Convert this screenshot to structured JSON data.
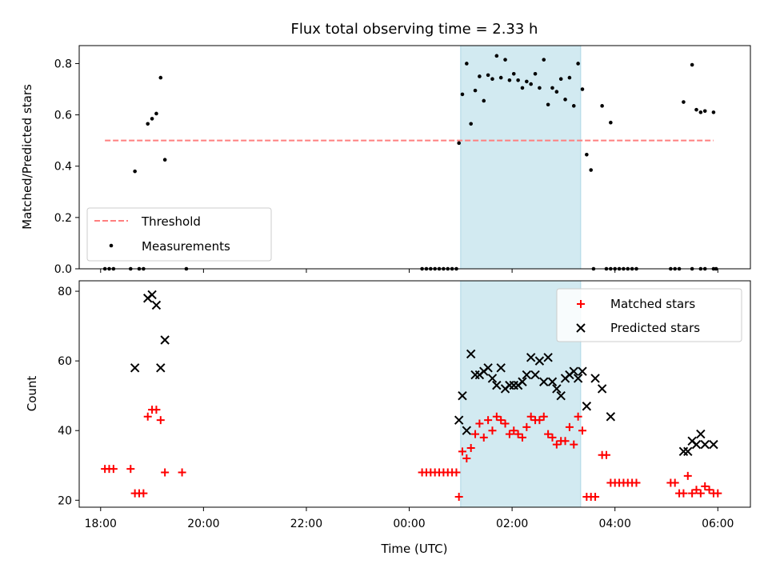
{
  "chart_data": [
    {
      "type": "scatter",
      "panel": "top",
      "title": "Flux total observing time = 2.33 h",
      "ylabel": "Matched/Predicted stars",
      "xlim": [
        "17:35",
        "06:38"
      ],
      "ylim": [
        0,
        0.87
      ],
      "yticks": [
        0.0,
        0.2,
        0.4,
        0.6,
        0.8
      ],
      "ytick_labels": [
        "0.0",
        "0.2",
        "0.4",
        "0.6",
        "0.8"
      ],
      "shaded_interval": [
        "01:00",
        "03:20"
      ],
      "shade_color": "#add8e6",
      "threshold": {
        "name": "Threshold",
        "value": 0.5,
        "x_range": [
          "18:05",
          "05:55"
        ],
        "color": "#ff7f7f",
        "style": "dashed"
      },
      "legend": {
        "placement": "lower-left",
        "entries": [
          "Threshold",
          "Measurements"
        ]
      },
      "series": [
        {
          "name": "Measurements",
          "color": "#000000",
          "marker": "dot",
          "points": [
            [
              "18:05",
              0
            ],
            [
              "18:10",
              0
            ],
            [
              "18:15",
              0
            ],
            [
              "18:35",
              0
            ],
            [
              "18:45",
              0
            ],
            [
              "18:50",
              0
            ],
            [
              "19:40",
              0
            ],
            [
              "18:40",
              0.38
            ],
            [
              "18:55",
              0.565
            ],
            [
              "19:00",
              0.585
            ],
            [
              "19:05",
              0.605
            ],
            [
              "19:10",
              0.745
            ],
            [
              "19:15",
              0.425
            ],
            [
              "00:15",
              0
            ],
            [
              "00:20",
              0
            ],
            [
              "00:25",
              0
            ],
            [
              "00:30",
              0
            ],
            [
              "00:35",
              0
            ],
            [
              "00:40",
              0
            ],
            [
              "00:45",
              0
            ],
            [
              "00:50",
              0
            ],
            [
              "00:55",
              0
            ],
            [
              "00:58",
              0.49
            ],
            [
              "01:02",
              0.68
            ],
            [
              "01:07",
              0.8
            ],
            [
              "01:12",
              0.565
            ],
            [
              "01:17",
              0.695
            ],
            [
              "01:22",
              0.75
            ],
            [
              "01:27",
              0.655
            ],
            [
              "01:32",
              0.755
            ],
            [
              "01:37",
              0.74
            ],
            [
              "01:42",
              0.83
            ],
            [
              "01:47",
              0.745
            ],
            [
              "01:52",
              0.815
            ],
            [
              "01:57",
              0.735
            ],
            [
              "02:02",
              0.76
            ],
            [
              "02:07",
              0.735
            ],
            [
              "02:12",
              0.705
            ],
            [
              "02:17",
              0.73
            ],
            [
              "02:22",
              0.72
            ],
            [
              "02:27",
              0.76
            ],
            [
              "02:32",
              0.705
            ],
            [
              "02:37",
              0.815
            ],
            [
              "02:42",
              0.64
            ],
            [
              "02:47",
              0.705
            ],
            [
              "02:52",
              0.69
            ],
            [
              "02:57",
              0.74
            ],
            [
              "03:02",
              0.66
            ],
            [
              "03:07",
              0.745
            ],
            [
              "03:12",
              0.635
            ],
            [
              "03:17",
              0.8
            ],
            [
              "03:22",
              0.7
            ],
            [
              "03:27",
              0.445
            ],
            [
              "03:32",
              0.385
            ],
            [
              "03:45",
              0.635
            ],
            [
              "03:55",
              0.57
            ],
            [
              "03:35",
              0
            ],
            [
              "03:50",
              0
            ],
            [
              "03:55",
              0
            ],
            [
              "04:00",
              0
            ],
            [
              "04:05",
              0
            ],
            [
              "04:10",
              0
            ],
            [
              "04:15",
              0
            ],
            [
              "04:20",
              0
            ],
            [
              "04:25",
              0
            ],
            [
              "05:05",
              0
            ],
            [
              "05:10",
              0
            ],
            [
              "05:15",
              0
            ],
            [
              "05:30",
              0
            ],
            [
              "05:40",
              0
            ],
            [
              "05:45",
              0
            ],
            [
              "05:55",
              0
            ],
            [
              "05:58",
              0
            ],
            [
              "05:20",
              0.65
            ],
            [
              "05:30",
              0.795
            ],
            [
              "05:35",
              0.62
            ],
            [
              "05:40",
              0.61
            ],
            [
              "05:45",
              0.615
            ],
            [
              "05:55",
              0.61
            ]
          ]
        }
      ]
    },
    {
      "type": "scatter",
      "panel": "bottom",
      "xlabel": "Time (UTC)",
      "ylabel": "Count",
      "xlim": [
        "17:35",
        "06:38"
      ],
      "ylim": [
        18,
        83
      ],
      "yticks": [
        20,
        40,
        60,
        80
      ],
      "ytick_labels": [
        "20",
        "40",
        "60",
        "80"
      ],
      "xticks": [
        "18:00",
        "20:00",
        "22:00",
        "00:00",
        "02:00",
        "04:00",
        "06:00"
      ],
      "xtick_labels": [
        "18:00",
        "20:00",
        "22:00",
        "00:00",
        "02:00",
        "04:00",
        "06:00"
      ],
      "shaded_interval": [
        "01:00",
        "03:20"
      ],
      "shade_color": "#add8e6",
      "legend": {
        "placement": "upper-right",
        "entries": [
          "Matched stars",
          "Predicted stars"
        ]
      },
      "series": [
        {
          "name": "Matched stars",
          "color": "#ff0000",
          "marker": "plus",
          "points": [
            [
              "18:05",
              29
            ],
            [
              "18:10",
              29
            ],
            [
              "18:15",
              29
            ],
            [
              "18:35",
              29
            ],
            [
              "18:40",
              22
            ],
            [
              "18:45",
              22
            ],
            [
              "18:50",
              22
            ],
            [
              "18:55",
              44
            ],
            [
              "19:00",
              46
            ],
            [
              "19:05",
              46
            ],
            [
              "19:10",
              43
            ],
            [
              "19:15",
              28
            ],
            [
              "19:35",
              28
            ],
            [
              "00:15",
              28
            ],
            [
              "00:20",
              28
            ],
            [
              "00:25",
              28
            ],
            [
              "00:30",
              28
            ],
            [
              "00:35",
              28
            ],
            [
              "00:40",
              28
            ],
            [
              "00:45",
              28
            ],
            [
              "00:50",
              28
            ],
            [
              "00:55",
              28
            ],
            [
              "00:58",
              21
            ],
            [
              "01:02",
              34
            ],
            [
              "01:07",
              32
            ],
            [
              "01:12",
              35
            ],
            [
              "01:17",
              39
            ],
            [
              "01:22",
              42
            ],
            [
              "01:27",
              38
            ],
            [
              "01:32",
              43
            ],
            [
              "01:37",
              40
            ],
            [
              "01:42",
              44
            ],
            [
              "01:47",
              43
            ],
            [
              "01:52",
              42
            ],
            [
              "01:57",
              39
            ],
            [
              "02:02",
              40
            ],
            [
              "02:07",
              39
            ],
            [
              "02:12",
              38
            ],
            [
              "02:17",
              41
            ],
            [
              "02:22",
              44
            ],
            [
              "02:27",
              43
            ],
            [
              "02:32",
              43
            ],
            [
              "02:37",
              44
            ],
            [
              "02:42",
              39
            ],
            [
              "02:47",
              38
            ],
            [
              "02:52",
              36
            ],
            [
              "02:57",
              37
            ],
            [
              "03:02",
              37
            ],
            [
              "03:07",
              41
            ],
            [
              "03:12",
              36
            ],
            [
              "03:17",
              44
            ],
            [
              "03:22",
              40
            ],
            [
              "03:27",
              21
            ],
            [
              "03:32",
              21
            ],
            [
              "03:37",
              21
            ],
            [
              "03:45",
              33
            ],
            [
              "03:50",
              33
            ],
            [
              "03:55",
              25
            ],
            [
              "04:00",
              25
            ],
            [
              "04:05",
              25
            ],
            [
              "04:10",
              25
            ],
            [
              "04:15",
              25
            ],
            [
              "04:20",
              25
            ],
            [
              "04:25",
              25
            ],
            [
              "05:05",
              25
            ],
            [
              "05:10",
              25
            ],
            [
              "05:15",
              22
            ],
            [
              "05:20",
              22
            ],
            [
              "05:25",
              27
            ],
            [
              "05:30",
              22
            ],
            [
              "05:35",
              23
            ],
            [
              "05:40",
              22
            ],
            [
              "05:45",
              24
            ],
            [
              "05:50",
              23
            ],
            [
              "05:55",
              22
            ],
            [
              "06:00",
              22
            ]
          ]
        },
        {
          "name": "Predicted stars",
          "color": "#000000",
          "marker": "x",
          "points": [
            [
              "18:40",
              58
            ],
            [
              "18:55",
              78
            ],
            [
              "19:00",
              79
            ],
            [
              "19:05",
              76
            ],
            [
              "19:10",
              58
            ],
            [
              "19:15",
              66
            ],
            [
              "00:58",
              43
            ],
            [
              "01:02",
              50
            ],
            [
              "01:07",
              40
            ],
            [
              "01:12",
              62
            ],
            [
              "01:17",
              56
            ],
            [
              "01:22",
              56
            ],
            [
              "01:27",
              57
            ],
            [
              "01:32",
              58
            ],
            [
              "01:37",
              55
            ],
            [
              "01:42",
              53
            ],
            [
              "01:47",
              58
            ],
            [
              "01:52",
              52
            ],
            [
              "01:57",
              53
            ],
            [
              "02:02",
              53
            ],
            [
              "02:07",
              53
            ],
            [
              "02:12",
              54
            ],
            [
              "02:17",
              56
            ],
            [
              "02:22",
              61
            ],
            [
              "02:27",
              56
            ],
            [
              "02:32",
              60
            ],
            [
              "02:37",
              54
            ],
            [
              "02:42",
              61
            ],
            [
              "02:47",
              54
            ],
            [
              "02:52",
              52
            ],
            [
              "02:57",
              50
            ],
            [
              "03:02",
              55
            ],
            [
              "03:07",
              56
            ],
            [
              "03:12",
              57
            ],
            [
              "03:17",
              55
            ],
            [
              "03:22",
              57
            ],
            [
              "03:27",
              47
            ],
            [
              "03:37",
              55
            ],
            [
              "03:45",
              52
            ],
            [
              "03:55",
              44
            ],
            [
              "05:20",
              34
            ],
            [
              "05:25",
              34
            ],
            [
              "05:30",
              37
            ],
            [
              "05:35",
              36
            ],
            [
              "05:40",
              39
            ],
            [
              "05:45",
              36
            ],
            [
              "05:55",
              36
            ]
          ]
        }
      ]
    }
  ]
}
